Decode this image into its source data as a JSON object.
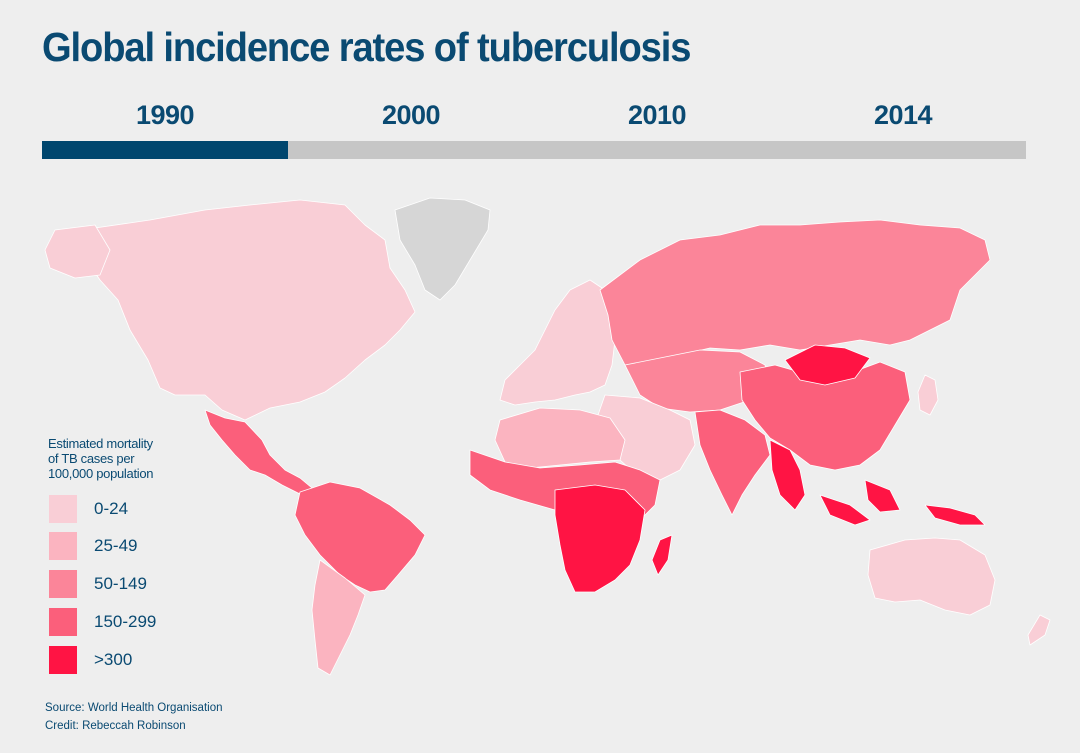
{
  "title": "Global incidence rates of tuberculosis",
  "timeline": {
    "years": [
      "1990",
      "2000",
      "2010",
      "2014"
    ],
    "selected": "1990",
    "selected_index": 0,
    "progress_fraction": 0.25,
    "active_color": "#00466e",
    "track_color": "#c6c6c6"
  },
  "legend": {
    "title_lines": [
      "Estimated mortality",
      "of TB cases per",
      "100,000 population"
    ],
    "items": [
      {
        "label": "0-24",
        "color": "#f9ced6"
      },
      {
        "label": "25-49",
        "color": "#fbb4c0"
      },
      {
        "label": "50-149",
        "color": "#fb8599"
      },
      {
        "label": "150-299",
        "color": "#fb5f7b"
      },
      {
        "label": ">300",
        "color": "#ff1444"
      }
    ]
  },
  "map": {
    "no_data_color": "#d6d6d6",
    "regions": [
      {
        "name": "north-america",
        "category": "0-24"
      },
      {
        "name": "greenland",
        "category": "no-data"
      },
      {
        "name": "mexico-central-america",
        "category": "150-299"
      },
      {
        "name": "south-america",
        "category": "150-299"
      },
      {
        "name": "southern-cone",
        "category": "25-49"
      },
      {
        "name": "europe",
        "category": "0-24"
      },
      {
        "name": "russia",
        "category": "50-149"
      },
      {
        "name": "central-asia",
        "category": "50-149"
      },
      {
        "name": "china",
        "category": "150-299"
      },
      {
        "name": "mongolia",
        "category": ">300"
      },
      {
        "name": "india",
        "category": "150-299"
      },
      {
        "name": "middle-east",
        "category": "0-24"
      },
      {
        "name": "north-africa",
        "category": "25-49"
      },
      {
        "name": "sub-saharan-africa",
        "category": "150-299"
      },
      {
        "name": "central-southern-africa",
        "category": ">300"
      },
      {
        "name": "southeast-asia",
        "category": ">300"
      },
      {
        "name": "japan",
        "category": "0-24"
      },
      {
        "name": "australia",
        "category": "0-24"
      }
    ]
  },
  "footer": {
    "source": "Source: World Health Organisation",
    "credit": "Credit: Rebeccah Robinson"
  }
}
